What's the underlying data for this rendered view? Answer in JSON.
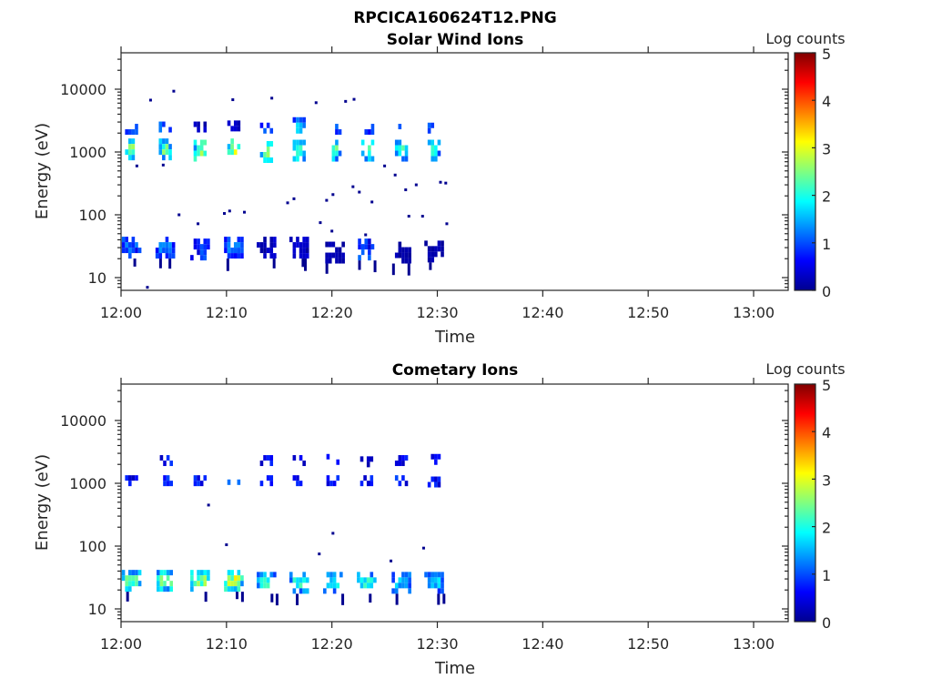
{
  "figure_title": "RPCICA160624T12.PNG",
  "chart_data": [
    {
      "type": "heatmap",
      "title": "Solar Wind Ions",
      "xlabel": "Time",
      "ylabel": "Energy (eV)",
      "yscale": "log",
      "ylim": [
        6.3,
        38000
      ],
      "xlim_minutes_after_1200": [
        0,
        63.4
      ],
      "xticks": [
        "12:00",
        "12:10",
        "12:20",
        "12:30",
        "12:40",
        "12:50",
        "13:00"
      ],
      "yticks": [
        "10",
        "100",
        "1000",
        "10000"
      ],
      "colorbar": {
        "label": "Log counts",
        "range": [
          0,
          5
        ],
        "ticks": [
          "0",
          "1",
          "2",
          "3",
          "4",
          "5"
        ],
        "colormap": "jet"
      },
      "bursts": [
        {
          "t": 1.0,
          "bands": [
            {
              "e": 2300,
              "level": 1.4
            },
            {
              "e": 1100,
              "level": 2.4
            },
            {
              "e": 30,
              "level": 0.9
            }
          ]
        },
        {
          "t": 4.2,
          "bands": [
            {
              "e": 2500,
              "level": 1.5
            },
            {
              "e": 1100,
              "level": 2.6
            },
            {
              "e": 30,
              "level": 1.2
            }
          ]
        },
        {
          "t": 7.5,
          "bands": [
            {
              "e": 2500,
              "level": 0.3
            },
            {
              "e": 1050,
              "level": 2.7
            },
            {
              "e": 28,
              "level": 0.8
            }
          ]
        },
        {
          "t": 10.7,
          "bands": [
            {
              "e": 2600,
              "level": 0.3
            },
            {
              "e": 1100,
              "level": 2.8
            },
            {
              "e": 30,
              "level": 1.3
            }
          ]
        },
        {
          "t": 13.8,
          "bands": [
            {
              "e": 2400,
              "level": 1.4
            },
            {
              "e": 1000,
              "level": 2.5
            },
            {
              "e": 30,
              "level": 0.3
            }
          ]
        },
        {
          "t": 16.9,
          "bands": [
            {
              "e": 2400,
              "level": 1.6
            },
            {
              "e": 1050,
              "level": 2.4
            },
            {
              "e": 30,
              "level": 0.3
            }
          ]
        },
        {
          "t": 20.3,
          "bands": [
            {
              "e": 2300,
              "level": 1.5
            },
            {
              "e": 1050,
              "level": 2.2
            },
            {
              "e": 25,
              "level": 0.2
            }
          ]
        },
        {
          "t": 23.4,
          "bands": [
            {
              "e": 2300,
              "level": 1.4
            },
            {
              "e": 1050,
              "level": 2.3
            },
            {
              "e": 28,
              "level": 0.8
            }
          ]
        },
        {
          "t": 26.6,
          "bands": [
            {
              "e": 2300,
              "level": 1.5
            },
            {
              "e": 1050,
              "level": 2.3
            },
            {
              "e": 25,
              "level": 0.2
            }
          ]
        },
        {
          "t": 29.7,
          "bands": [
            {
              "e": 2400,
              "level": 1.5
            },
            {
              "e": 1050,
              "level": 2.0
            },
            {
              "e": 26,
              "level": 0.2
            }
          ]
        }
      ],
      "scatter": [
        [
          2.8,
          6700
        ],
        [
          5.0,
          9300
        ],
        [
          1.5,
          600
        ],
        [
          4.0,
          620
        ],
        [
          10.6,
          6800
        ],
        [
          14.3,
          7200
        ],
        [
          18.5,
          6100
        ],
        [
          21.3,
          6400
        ],
        [
          22.1,
          6900
        ],
        [
          25.0,
          600
        ],
        [
          26.0,
          430
        ],
        [
          27.0,
          250
        ],
        [
          28.0,
          300
        ],
        [
          30.3,
          330
        ],
        [
          30.8,
          320
        ],
        [
          22.0,
          280
        ],
        [
          22.6,
          230
        ],
        [
          23.8,
          160
        ],
        [
          19.5,
          170
        ],
        [
          20.1,
          210
        ],
        [
          16.4,
          180
        ],
        [
          15.8,
          155
        ],
        [
          5.5,
          100
        ],
        [
          7.3,
          72
        ],
        [
          9.8,
          105
        ],
        [
          10.3,
          115
        ],
        [
          11.7,
          110
        ],
        [
          20.0,
          55
        ],
        [
          18.9,
          75
        ],
        [
          23.2,
          48
        ],
        [
          27.3,
          95
        ],
        [
          28.6,
          95
        ],
        [
          30.9,
          72
        ],
        [
          2.5,
          7
        ]
      ]
    },
    {
      "type": "heatmap",
      "title": "Cometary Ions",
      "xlabel": "Time",
      "ylabel": "Energy (eV)",
      "yscale": "log",
      "ylim": [
        6.3,
        38000
      ],
      "xlim_minutes_after_1200": [
        0,
        63.4
      ],
      "xticks": [
        "12:00",
        "12:10",
        "12:20",
        "12:30",
        "12:40",
        "12:50",
        "13:00"
      ],
      "yticks": [
        "10",
        "100",
        "1000",
        "10000"
      ],
      "colorbar": {
        "label": "Log counts",
        "range": [
          0,
          5
        ],
        "ticks": [
          "0",
          "1",
          "2",
          "3",
          "4",
          "5"
        ],
        "colormap": "jet"
      },
      "bursts": [
        {
          "t": 1.0,
          "bands": [
            {
              "e": 1100,
              "level": 0.6
            },
            {
              "e": 28,
              "level": 2.2
            }
          ]
        },
        {
          "t": 4.3,
          "bands": [
            {
              "e": 2300,
              "level": 0.6
            },
            {
              "e": 1100,
              "level": 0.7
            },
            {
              "e": 28,
              "level": 2.5
            }
          ]
        },
        {
          "t": 7.5,
          "bands": [
            {
              "e": 1100,
              "level": 0.6
            },
            {
              "e": 28,
              "level": 2.5
            }
          ]
        },
        {
          "t": 10.7,
          "bands": [
            {
              "e": 1150,
              "level": 0.8
            },
            {
              "e": 28,
              "level": 2.8
            }
          ]
        },
        {
          "t": 13.8,
          "bands": [
            {
              "e": 2300,
              "level": 0.6
            },
            {
              "e": 1100,
              "level": 0.6
            },
            {
              "e": 26,
              "level": 2.0
            }
          ]
        },
        {
          "t": 16.9,
          "bands": [
            {
              "e": 2300,
              "level": 0.4
            },
            {
              "e": 1100,
              "level": 0.6
            },
            {
              "e": 26,
              "level": 2.0
            }
          ]
        },
        {
          "t": 20.1,
          "bands": [
            {
              "e": 2400,
              "level": 0.5
            },
            {
              "e": 1100,
              "level": 0.6
            },
            {
              "e": 26,
              "level": 2.0
            }
          ]
        },
        {
          "t": 23.3,
          "bands": [
            {
              "e": 2200,
              "level": 0.4
            },
            {
              "e": 1100,
              "level": 0.6
            },
            {
              "e": 26,
              "level": 2.0
            }
          ]
        },
        {
          "t": 26.6,
          "bands": [
            {
              "e": 2300,
              "level": 0.6
            },
            {
              "e": 1100,
              "level": 0.7
            },
            {
              "e": 26,
              "level": 1.6
            }
          ]
        },
        {
          "t": 29.7,
          "bands": [
            {
              "e": 2400,
              "level": 0.6
            },
            {
              "e": 1050,
              "level": 0.6
            },
            {
              "e": 26,
              "level": 1.6
            }
          ]
        }
      ],
      "scatter": [
        [
          8.3,
          450
        ],
        [
          10.0,
          105
        ],
        [
          18.8,
          75
        ],
        [
          20.1,
          160
        ],
        [
          25.6,
          58
        ],
        [
          28.7,
          93
        ]
      ]
    }
  ]
}
